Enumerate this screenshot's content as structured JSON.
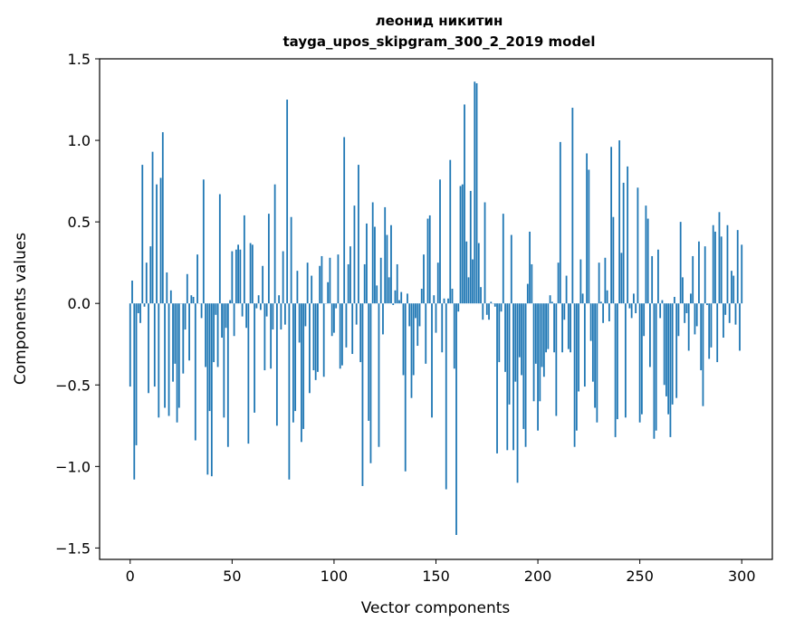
{
  "chart_data": {
    "type": "bar",
    "title_line1": "леонид никитин",
    "title_line2": "tayga_upos_skipgram_300_2_2019 model",
    "xlabel": "Vector components",
    "ylabel": "Components values",
    "xlim": [
      -15,
      315
    ],
    "ylim": [
      -1.57,
      1.5
    ],
    "xticks": [
      0,
      50,
      100,
      150,
      200,
      250,
      300
    ],
    "xtick_labels": [
      "0",
      "50",
      "100",
      "150",
      "200",
      "250",
      "300"
    ],
    "yticks": [
      -1.5,
      -1.0,
      -0.5,
      0.0,
      0.5,
      1.0,
      1.5
    ],
    "ytick_labels": [
      "−1.5",
      "−1.0",
      "−0.5",
      "0.0",
      "0.5",
      "1.0",
      "1.5"
    ],
    "bar_color": "#1f77b4",
    "values": [
      -0.51,
      0.14,
      -1.08,
      -0.87,
      -0.06,
      -0.12,
      0.85,
      -0.02,
      0.25,
      -0.55,
      0.35,
      0.93,
      -0.51,
      0.73,
      -0.7,
      0.77,
      1.05,
      -0.64,
      0.19,
      -0.69,
      0.08,
      -0.48,
      -0.37,
      -0.73,
      -0.64,
      0.0,
      -0.43,
      -0.16,
      0.18,
      -0.35,
      0.05,
      0.04,
      -0.84,
      0.3,
      0.0,
      -0.09,
      0.76,
      -0.39,
      -1.05,
      -0.66,
      -1.06,
      -0.36,
      -0.07,
      -0.39,
      0.67,
      -0.21,
      -0.7,
      -0.15,
      -0.88,
      0.02,
      0.32,
      -0.2,
      0.33,
      0.36,
      0.33,
      -0.08,
      0.54,
      -0.15,
      -0.86,
      0.37,
      0.36,
      -0.67,
      -0.03,
      0.05,
      -0.04,
      0.23,
      -0.41,
      -0.08,
      0.55,
      -0.4,
      -0.16,
      0.73,
      -0.75,
      0.05,
      -0.16,
      0.32,
      -0.13,
      1.25,
      -1.08,
      0.53,
      -0.73,
      -0.66,
      0.2,
      -0.24,
      -0.85,
      -0.77,
      -0.14,
      0.25,
      -0.55,
      0.17,
      -0.41,
      -0.47,
      -0.42,
      0.23,
      0.29,
      -0.45,
      0.0,
      0.13,
      0.28,
      -0.2,
      -0.18,
      -0.03,
      0.3,
      -0.4,
      -0.38,
      1.02,
      -0.27,
      0.24,
      0.35,
      -0.31,
      0.6,
      -0.13,
      0.85,
      -0.36,
      -1.12,
      0.24,
      0.49,
      -0.72,
      -0.98,
      0.62,
      0.47,
      0.11,
      -0.88,
      0.28,
      -0.19,
      0.59,
      0.42,
      0.16,
      0.48,
      -0.01,
      0.08,
      0.24,
      0.02,
      0.07,
      -0.44,
      -1.03,
      0.06,
      -0.14,
      -0.58,
      -0.44,
      -0.09,
      -0.26,
      -0.14,
      0.09,
      0.3,
      -0.37,
      0.52,
      0.54,
      -0.7,
      0.05,
      -0.18,
      0.25,
      0.76,
      -0.3,
      0.03,
      -1.14,
      0.03,
      0.88,
      0.09,
      -0.4,
      -1.42,
      -0.05,
      0.72,
      0.73,
      1.22,
      0.38,
      0.16,
      0.69,
      0.27,
      1.36,
      1.35,
      0.37,
      0.1,
      -0.1,
      0.62,
      -0.07,
      -0.1,
      0.01,
      0.0,
      -0.02,
      -0.92,
      -0.36,
      -0.05,
      0.55,
      -0.42,
      -0.9,
      -0.62,
      0.42,
      -0.9,
      -0.48,
      -1.1,
      -0.33,
      -0.44,
      -0.77,
      -0.88,
      0.12,
      0.44,
      0.24,
      -0.6,
      -0.37,
      -0.78,
      -0.6,
      -0.39,
      -0.45,
      -0.3,
      -0.28,
      0.05,
      0.01,
      -0.3,
      -0.69,
      0.25,
      0.99,
      -0.3,
      -0.1,
      0.17,
      -0.28,
      -0.3,
      1.2,
      -0.88,
      -0.78,
      -0.54,
      0.27,
      0.06,
      -0.51,
      0.92,
      0.82,
      -0.23,
      -0.48,
      -0.64,
      -0.73,
      0.25,
      0.01,
      -0.12,
      0.28,
      0.08,
      -0.11,
      0.96,
      0.53,
      -0.82,
      -0.71,
      1.0,
      0.31,
      0.74,
      -0.7,
      0.84,
      -0.03,
      -0.09,
      0.06,
      -0.06,
      0.71,
      -0.73,
      -0.68,
      -0.2,
      0.6,
      0.52,
      -0.39,
      0.29,
      -0.83,
      -0.78,
      0.33,
      -0.09,
      0.02,
      -0.5,
      -0.57,
      -0.68,
      -0.82,
      -0.62,
      0.04,
      -0.58,
      -0.2,
      0.5,
      0.16,
      -0.12,
      -0.06,
      -0.29,
      0.06,
      0.29,
      -0.19,
      -0.14,
      0.38,
      -0.41,
      -0.63,
      0.35,
      -0.01,
      -0.34,
      -0.27,
      0.48,
      0.44,
      -0.36,
      0.56,
      0.41,
      -0.21,
      -0.07,
      0.48,
      -0.12,
      0.2,
      0.17,
      -0.13,
      0.45,
      -0.29,
      0.36
    ]
  }
}
